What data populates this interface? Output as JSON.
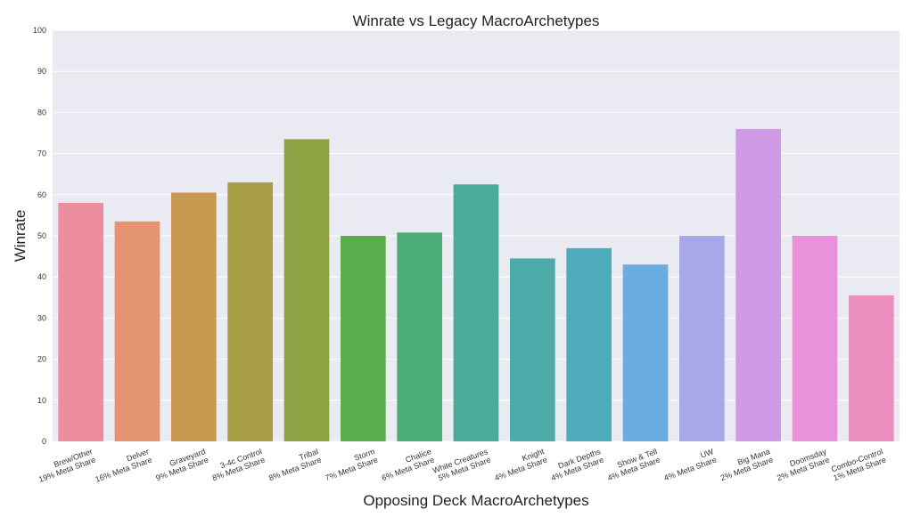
{
  "chart_data": {
    "type": "bar",
    "title": "Winrate vs Legacy MacroArchetypes",
    "xlabel": "Opposing Deck MacroArchetypes",
    "ylabel": "Winrate",
    "ylim": [
      0,
      100
    ],
    "yticks": [
      0,
      10,
      20,
      30,
      40,
      50,
      60,
      70,
      80,
      90,
      100
    ],
    "grid": true,
    "categories": [
      [
        "Brew/Other",
        "19% Meta Share"
      ],
      [
        "Delver",
        "16% Meta Share"
      ],
      [
        "Graveyard",
        "9% Meta Share"
      ],
      [
        "3-4c Control",
        "8% Meta Share"
      ],
      [
        "Tribal",
        "8% Meta Share"
      ],
      [
        "Storm",
        "7% Meta Share"
      ],
      [
        "Chalice",
        "6% Meta Share"
      ],
      [
        "White Creatures",
        "5% Meta Share"
      ],
      [
        "Knight",
        "4% Meta Share"
      ],
      [
        "Dark Depths",
        "4% Meta Share"
      ],
      [
        "Show & Tell",
        "4% Meta Share"
      ],
      [
        "UW",
        "4% Meta Share"
      ],
      [
        "Big Mana",
        "2% Meta Share"
      ],
      [
        "Doomsday",
        "2% Meta Share"
      ],
      [
        "Combo-Control",
        "1% Meta Share"
      ]
    ],
    "values": [
      58,
      53.5,
      60.5,
      63,
      73.5,
      50,
      50.8,
      62.5,
      44.5,
      47,
      43,
      50,
      76,
      50,
      35.5
    ],
    "colors": [
      "#eb8d9c",
      "#e49470",
      "#c79950",
      "#a89d47",
      "#8ea243",
      "#5cad4c",
      "#4cac77",
      "#4aac98",
      "#4caaa9",
      "#4eabbc",
      "#6aacdf",
      "#a9a8e9",
      "#d09ae6",
      "#e991db",
      "#e98fbf"
    ]
  }
}
